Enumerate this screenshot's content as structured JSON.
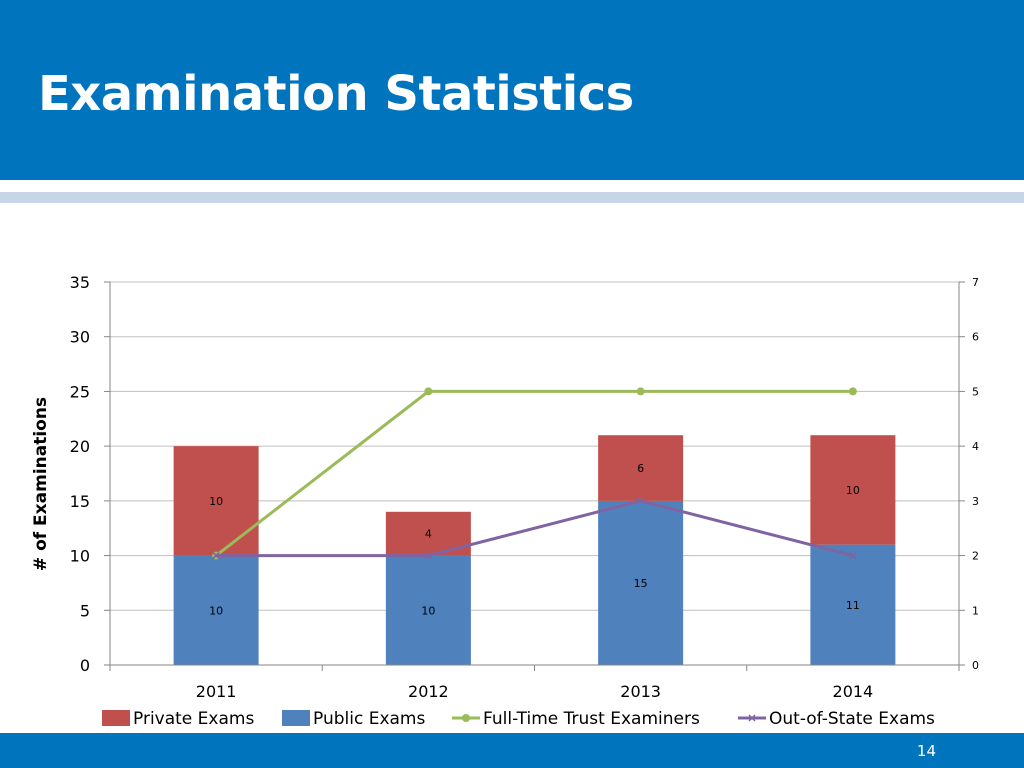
{
  "slide": {
    "title": "Examination Statistics",
    "page_number": "14"
  },
  "colors": {
    "header": "#0075bd",
    "stripe": "#c6d6e8",
    "private": "#c0504d",
    "public": "#4f81bd",
    "fulltime": "#9bbb59",
    "outofstate": "#8064a2",
    "grid": "#bfbfbf",
    "axis": "#868686"
  },
  "chart_data": {
    "type": "bar",
    "stacked": true,
    "categories": [
      "2011",
      "2012",
      "2013",
      "2014"
    ],
    "ylabel": "# of Examinations",
    "ylim": [
      0,
      35
    ],
    "y_ticks": [
      "0",
      "5",
      "10",
      "15",
      "20",
      "25",
      "30",
      "35"
    ],
    "y2lim": [
      0,
      7
    ],
    "y2_ticks": [
      "0",
      "1",
      "2",
      "3",
      "4",
      "5",
      "6",
      "7"
    ],
    "grid": true,
    "legend_position": "bottom",
    "series": [
      {
        "name": "Public Exams",
        "type": "bar",
        "axis": "left",
        "values": [
          10,
          10,
          15,
          11
        ],
        "labels": [
          "10",
          "10",
          "15",
          "11"
        ]
      },
      {
        "name": "Private Exams",
        "type": "bar",
        "axis": "left",
        "values": [
          10,
          4,
          6,
          10
        ],
        "labels": [
          "10",
          "4",
          "6",
          "10"
        ]
      },
      {
        "name": "Full-Time Trust Examiners",
        "type": "line",
        "axis": "right",
        "marker": "circle",
        "values": [
          2,
          5,
          5,
          5
        ]
      },
      {
        "name": "Out-of-State Exams",
        "type": "line",
        "axis": "right",
        "marker": "x",
        "values": [
          2,
          2,
          3,
          2
        ]
      }
    ],
    "legend": [
      "Private Exams",
      "Public Exams",
      "Full-Time Trust Examiners",
      "Out-of-State Exams"
    ]
  }
}
